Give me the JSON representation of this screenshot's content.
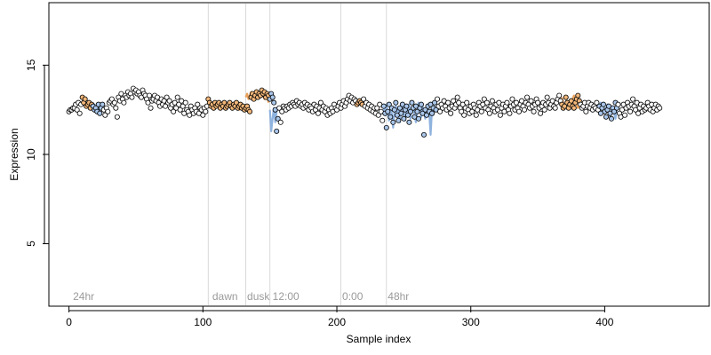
{
  "chart_data": {
    "type": "scatter",
    "title": "",
    "xlabel": "Sample index",
    "ylabel": "Expression",
    "xlim": [
      -15,
      478
    ],
    "ylim": [
      1.5,
      18.5
    ],
    "xticks": [
      0,
      100,
      200,
      300,
      400
    ],
    "yticks": [
      5,
      10,
      15
    ],
    "grid": false,
    "legend": "none",
    "colors": {
      "point_fill_light": "#ffffff",
      "point_fill_orange": "#f2b77a",
      "point_fill_blue": "#a9c6ea",
      "point_outline": "#000000",
      "line_orange": "#e8a15a",
      "line_blue": "#8fb3df",
      "vline": "#d9d9d9",
      "annotation": "#9a9a9a"
    },
    "vlines": [
      104,
      132,
      150,
      203,
      237
    ],
    "annotations": [
      {
        "x": 3,
        "label": "24hr"
      },
      {
        "x": 107,
        "label": "dawn"
      },
      {
        "x": 133,
        "label": "dusk"
      },
      {
        "x": 152,
        "label": "12:00"
      },
      {
        "x": 204,
        "label": "0:00"
      },
      {
        "x": 238,
        "label": "48hr"
      }
    ],
    "series": [
      {
        "color_key": "orange",
        "segments": [
          {
            "x_start": 10,
            "values": [
              12.9,
              13.1,
              12.8,
              12.7,
              12.9,
              12.8,
              12.6,
              12.8
            ]
          },
          {
            "x_start": 104,
            "values": [
              12.9,
              12.7,
              12.8,
              12.9,
              12.6,
              12.8,
              12.7,
              12.9,
              12.8,
              12.6,
              12.7,
              12.8,
              12.9,
              12.7,
              12.6,
              12.8,
              12.7,
              12.9,
              12.6,
              12.7,
              12.8,
              12.6,
              12.7,
              12.5,
              12.6,
              12.7,
              12.5,
              12.4
            ]
          },
          {
            "x_start": 132,
            "values": [
              13.2,
              13.4,
              13.1,
              13.3,
              13.5,
              13.2,
              13.4,
              13.3,
              13.6,
              13.4,
              13.5,
              13.2,
              13.4,
              13.3,
              13.1,
              13.4,
              13.2,
              12.9
            ]
          },
          {
            "x_start": 215,
            "values": [
              12.8,
              12.9,
              13.0,
              12.9,
              12.8
            ]
          },
          {
            "x_start": 368,
            "values": [
              13.2,
              12.9,
              12.6,
              12.8,
              13.0,
              12.7,
              12.6,
              12.9,
              13.1,
              13.3,
              13.0,
              12.8,
              12.6,
              12.7
            ]
          }
        ]
      },
      {
        "color_key": "blue",
        "segments": [
          {
            "x_start": 18,
            "values": [
              12.6,
              12.8,
              12.5,
              12.7,
              12.4,
              12.6,
              12.8,
              12.5
            ]
          },
          {
            "x_start": 150,
            "values": [
              12.5,
              11.3,
              12.0,
              12.6,
              11.8,
              12.4,
              12.7
            ]
          },
          {
            "x_start": 235,
            "values": [
              12.6,
              12.2,
              12.8,
              12.4,
              11.9,
              12.7,
              12.3,
              11.5,
              12.4,
              12.8,
              12.1,
              12.6,
              11.8,
              12.5,
              12.9,
              12.2,
              11.9,
              12.6,
              12.3,
              12.8,
              12.0,
              12.5,
              12.7,
              12.2,
              11.8,
              12.4,
              12.9,
              12.6,
              12.1,
              12.7,
              12.4,
              12.0,
              12.6,
              12.8,
              12.3,
              11.1,
              12.5,
              12.2,
              12.7,
              12.4
            ]
          },
          {
            "x_start": 396,
            "values": [
              12.6,
              12.9,
              12.5,
              12.7,
              12.3,
              12.6,
              12.8,
              12.4,
              12.1,
              12.5,
              12.7,
              12.3,
              12.0,
              12.6
            ]
          }
        ]
      }
    ],
    "points": {
      "x_start": 0,
      "values": [
        12.4,
        12.5,
        12.5,
        12.6,
        12.6,
        12.8,
        12.5,
        12.9,
        12.3,
        12.8,
        13.2,
        12.9,
        13.1,
        12.7,
        12.8,
        12.9,
        12.6,
        12.8,
        12.7,
        12.5,
        12.6,
        12.4,
        12.8,
        12.3,
        12.6,
        12.8,
        12.5,
        12.2,
        12.6,
        12.4,
        12.9,
        13.0,
        13.1,
        12.8,
        12.9,
        12.6,
        12.1,
        13.2,
        13.0,
        13.4,
        13.1,
        12.9,
        13.3,
        13.2,
        13.5,
        13.3,
        13.4,
        13.2,
        13.7,
        13.5,
        13.6,
        13.4,
        13.5,
        13.3,
        13.2,
        13.6,
        13.4,
        13.3,
        13.1,
        12.9,
        13.3,
        12.6,
        13.0,
        13.1,
        13.3,
        13.0,
        13.2,
        12.9,
        12.7,
        13.1,
        12.8,
        13.0,
        12.7,
        13.2,
        12.9,
        13.0,
        12.6,
        12.8,
        12.4,
        12.9,
        12.6,
        13.2,
        12.8,
        12.5,
        13.0,
        12.7,
        12.3,
        12.9,
        12.5,
        12.4,
        12.2,
        12.7,
        12.5,
        12.3,
        12.6,
        12.4,
        12.8,
        12.3,
        12.6,
        12.5,
        12.2,
        12.6,
        12.4,
        12.7,
        13.1,
        12.9,
        12.7,
        12.8,
        12.6,
        12.9,
        12.7,
        12.8,
        12.9,
        12.6,
        12.8,
        12.7,
        12.9,
        12.6,
        12.7,
        12.8,
        12.9,
        12.7,
        12.6,
        12.8,
        12.7,
        12.9,
        12.6,
        12.7,
        12.8,
        12.6,
        12.7,
        12.5,
        12.6,
        12.7,
        12.5,
        12.4,
        13.2,
        13.4,
        13.1,
        13.3,
        13.5,
        13.2,
        13.4,
        13.3,
        13.6,
        13.4,
        13.5,
        13.2,
        13.4,
        13.3,
        13.1,
        13.4,
        13.2,
        12.9,
        12.5,
        11.3,
        12.0,
        12.6,
        11.8,
        12.4,
        12.7,
        12.6,
        12.5,
        12.7,
        12.6,
        12.8,
        12.7,
        12.9,
        12.8,
        12.7,
        13.0,
        12.8,
        12.9,
        12.7,
        12.8,
        12.6,
        12.9,
        12.7,
        12.8,
        12.5,
        12.7,
        12.6,
        12.4,
        12.8,
        12.5,
        12.7,
        12.3,
        12.6,
        12.9,
        12.5,
        12.7,
        12.4,
        12.6,
        12.2,
        12.5,
        12.3,
        12.6,
        12.4,
        12.8,
        12.6,
        12.5,
        12.7,
        12.9,
        12.6,
        12.8,
        13.0,
        12.7,
        12.9,
        13.1,
        13.3,
        13.0,
        13.2,
        12.9,
        13.1,
        13.0,
        12.8,
        12.9,
        13.0,
        12.9,
        12.8,
        13.1,
        12.7,
        12.9,
        12.6,
        12.8,
        12.5,
        12.7,
        12.4,
        12.6,
        12.3,
        12.6,
        12.2,
        12.8,
        12.4,
        11.9,
        12.7,
        12.3,
        11.5,
        12.4,
        12.8,
        12.1,
        12.6,
        11.8,
        12.5,
        12.9,
        12.2,
        11.9,
        12.6,
        12.3,
        12.8,
        12.0,
        12.5,
        12.7,
        12.2,
        11.8,
        12.4,
        12.9,
        12.6,
        12.1,
        12.7,
        12.4,
        12.0,
        12.6,
        12.8,
        12.3,
        11.1,
        12.5,
        12.2,
        12.7,
        12.4,
        12.8,
        12.3,
        12.6,
        12.9,
        12.5,
        13.1,
        12.7,
        12.4,
        12.8,
        12.6,
        13.0,
        12.7,
        12.5,
        12.9,
        12.6,
        12.3,
        12.7,
        13.0,
        12.6,
        12.8,
        13.2,
        12.9,
        12.6,
        12.4,
        12.8,
        12.2,
        12.6,
        12.9,
        12.5,
        12.3,
        12.7,
        12.4,
        12.8,
        12.6,
        12.2,
        12.5,
        12.9,
        12.7,
        12.4,
        12.8,
        13.1,
        12.6,
        12.9,
        12.5,
        12.3,
        12.7,
        13.0,
        12.6,
        12.4,
        12.8,
        12.5,
        12.9,
        12.2,
        12.6,
        12.8,
        12.4,
        12.7,
        12.9,
        12.5,
        12.3,
        12.7,
        13.1,
        12.8,
        12.5,
        12.9,
        12.6,
        12.4,
        12.8,
        13.0,
        12.7,
        12.5,
        12.9,
        13.2,
        12.8,
        12.6,
        13.0,
        12.7,
        12.4,
        12.8,
        13.1,
        12.9,
        12.6,
        12.3,
        12.7,
        12.9,
        12.5,
        12.8,
        13.2,
        12.9,
        12.6,
        12.8,
        13.0,
        12.7,
        12.6,
        12.9,
        13.1,
        13.3,
        13.0,
        12.8,
        12.6,
        12.7,
        13.2,
        12.9,
        12.6,
        12.8,
        13.0,
        12.7,
        12.6,
        12.9,
        13.1,
        13.3,
        13.0,
        12.8,
        12.6,
        12.7,
        12.9,
        12.4,
        12.7,
        12.9,
        12.6,
        12.8,
        12.5,
        12.7,
        12.6,
        12.9,
        12.5,
        12.7,
        12.3,
        12.6,
        12.8,
        12.4,
        12.1,
        12.5,
        12.7,
        12.3,
        12.0,
        12.6,
        12.4,
        12.9,
        12.6,
        12.8,
        12.3,
        12.1,
        12.5,
        12.8,
        12.2,
        12.6,
        12.9,
        12.7,
        12.4,
        12.8,
        13.1,
        12.7,
        12.5,
        12.9,
        12.3,
        12.6,
        12.8,
        12.4,
        12.7,
        12.5,
        12.6,
        12.9,
        12.7,
        12.5,
        12.8,
        12.4,
        12.6,
        12.8,
        12.5,
        12.7,
        12.6
      ]
    },
    "point_colors": {
      "orange": [
        [
          10,
          18
        ],
        [
          104,
          132
        ],
        [
          132,
          150
        ],
        [
          215,
          220
        ],
        [
          368,
          382
        ]
      ],
      "blue": [
        [
          18,
          26
        ],
        [
          150,
          157
        ],
        [
          235,
          275
        ],
        [
          396,
          410
        ]
      ]
    }
  }
}
